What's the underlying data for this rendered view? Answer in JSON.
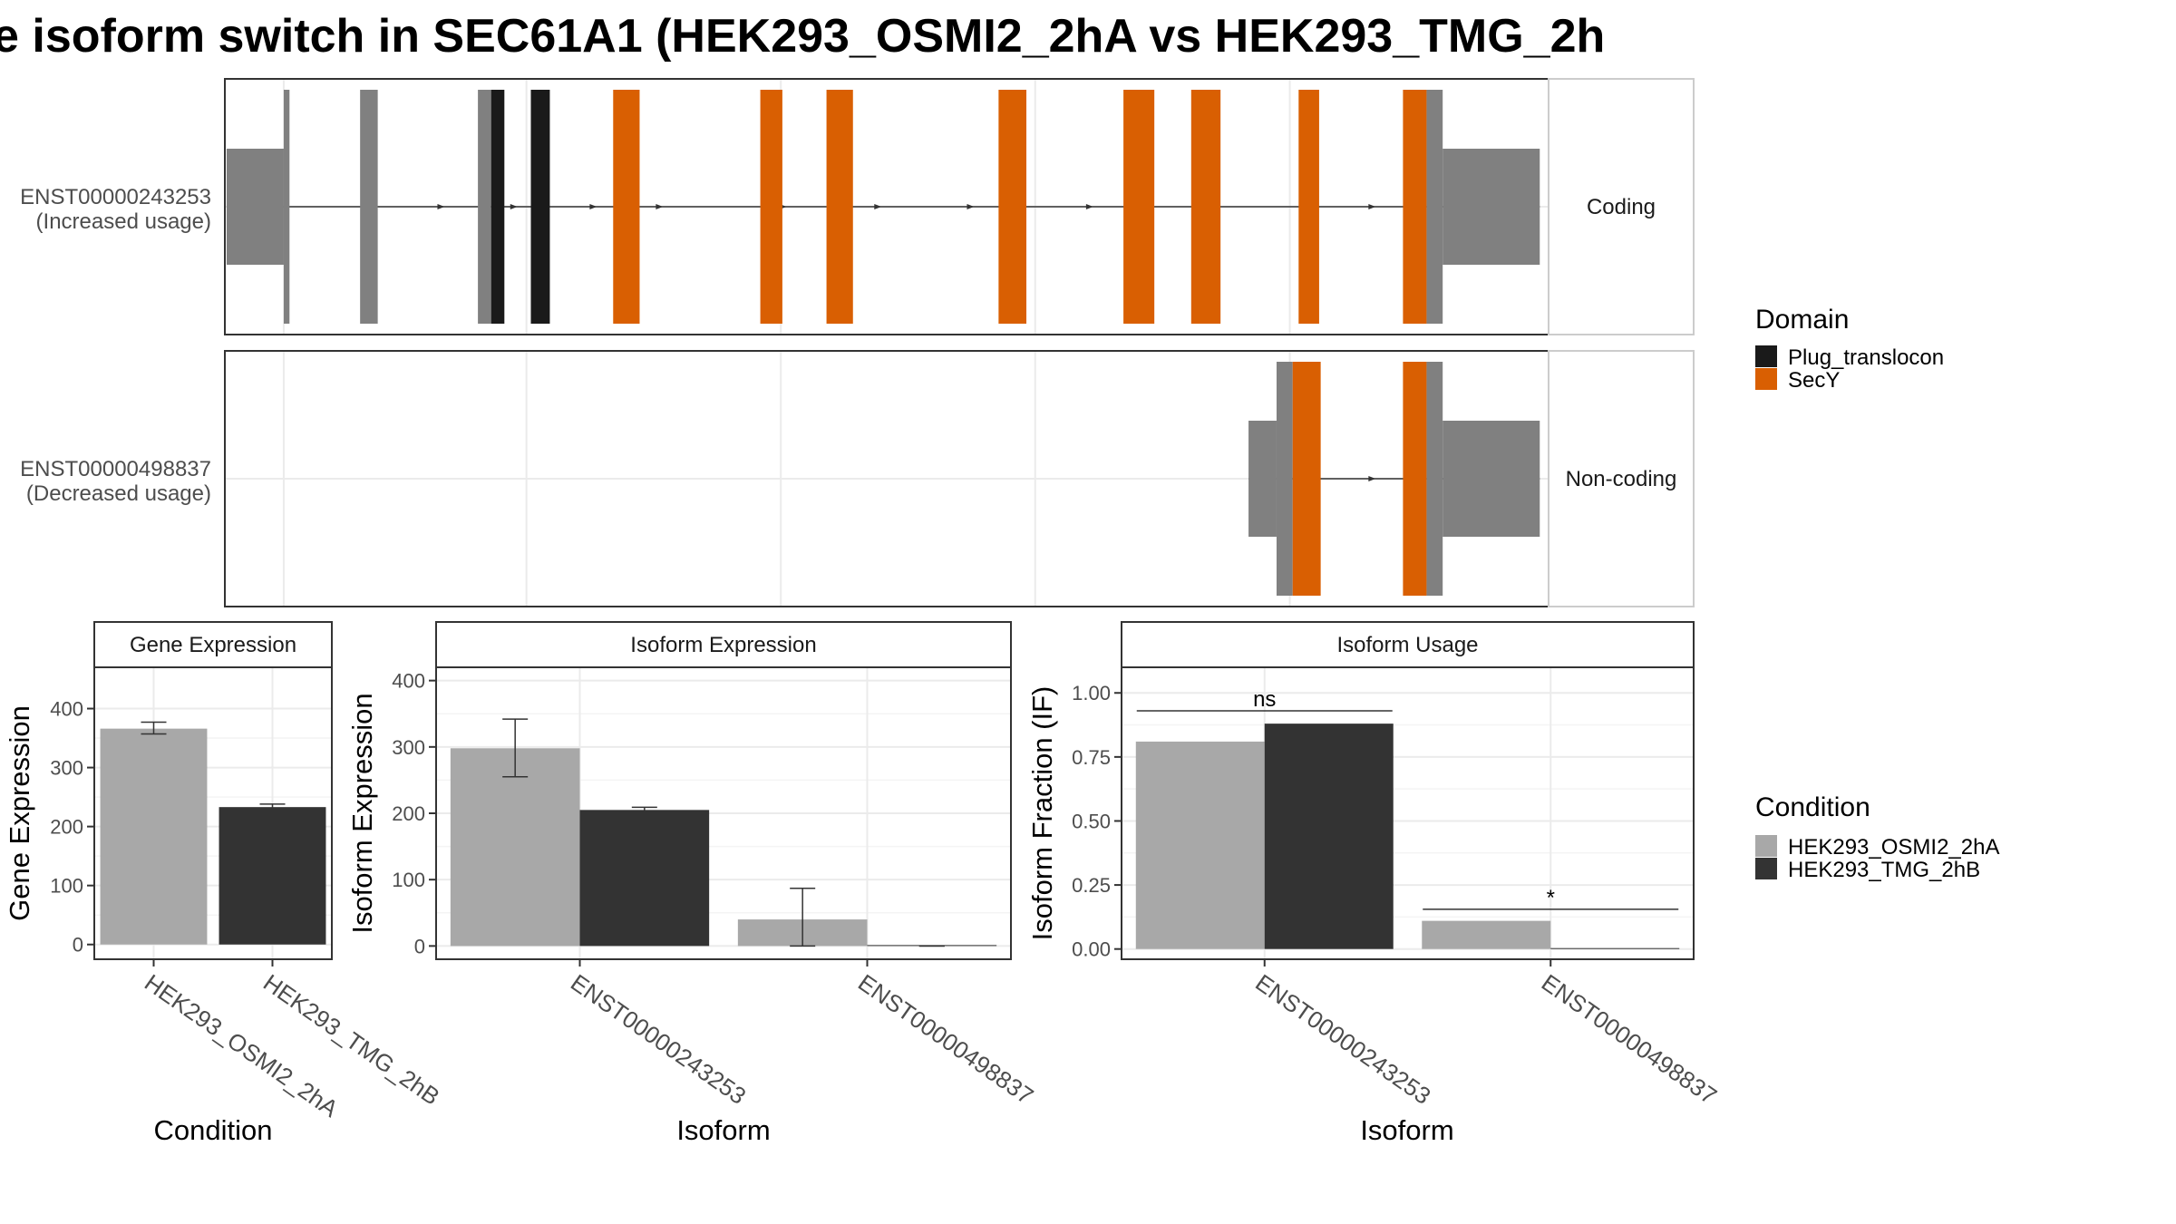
{
  "figure": {
    "title": "e isoform switch in SEC61A1 (HEK293_OSMI2_2hA vs HEK293_TMG_2h"
  },
  "colors": {
    "plug": "#1a1a1a",
    "secy": "#d95f02",
    "exon": "#808080",
    "cond1": "#a8a8a8",
    "cond2": "#333333"
  },
  "chart_data": [
    {
      "type": "gene-structure",
      "tracks": [
        {
          "id": "ENST00000243253",
          "usage": "(Increased usage)",
          "strip": "Coding",
          "exons": [
            {
              "start": 0.08,
              "end": 2.67,
              "kind": "utr"
            },
            {
              "start": 2.67,
              "end": 2.93,
              "kind": "cds"
            },
            {
              "start": 6.13,
              "end": 6.93,
              "kind": "cds"
            },
            {
              "start": 11.47,
              "end": 12.07,
              "kind": "cds"
            },
            {
              "start": 12.07,
              "end": 12.67,
              "kind": "cds",
              "domain": "Plug_translocon"
            },
            {
              "start": 13.87,
              "end": 14.73,
              "kind": "cds",
              "domain": "Plug_translocon"
            },
            {
              "start": 17.6,
              "end": 18.8,
              "kind": "cds",
              "domain": "SecY"
            },
            {
              "start": 24.27,
              "end": 25.27,
              "kind": "cds",
              "domain": "SecY"
            },
            {
              "start": 27.27,
              "end": 28.47,
              "kind": "cds",
              "domain": "SecY"
            },
            {
              "start": 35.07,
              "end": 36.33,
              "kind": "cds",
              "domain": "SecY"
            },
            {
              "start": 40.73,
              "end": 42.13,
              "kind": "cds",
              "domain": "SecY"
            },
            {
              "start": 43.8,
              "end": 45.13,
              "kind": "cds",
              "domain": "SecY"
            },
            {
              "start": 48.67,
              "end": 49.6,
              "kind": "cds",
              "domain": "SecY"
            },
            {
              "start": 53.4,
              "end": 54.47,
              "kind": "cds",
              "domain": "SecY"
            },
            {
              "start": 54.47,
              "end": 55.2,
              "kind": "cds"
            },
            {
              "start": 55.2,
              "end": 59.6,
              "kind": "utr"
            }
          ],
          "arrows": [
            6.4,
            9.8,
            13.1,
            16.7,
            19.7,
            25.3,
            28.3,
            29.6,
            33.8,
            39.2,
            44.2,
            52.0
          ]
        },
        {
          "id": "ENST00000498837",
          "usage": "(Decreased usage)",
          "strip": "Non-coding",
          "exons": [
            {
              "start": 46.4,
              "end": 47.67,
              "kind": "utr"
            },
            {
              "start": 47.67,
              "end": 48.4,
              "kind": "cds"
            },
            {
              "start": 48.4,
              "end": 49.67,
              "kind": "cds",
              "domain": "SecY"
            },
            {
              "start": 53.4,
              "end": 54.47,
              "kind": "cds",
              "domain": "SecY"
            },
            {
              "start": 54.47,
              "end": 55.2,
              "kind": "cds"
            },
            {
              "start": 55.2,
              "end": 59.6,
              "kind": "utr"
            }
          ],
          "arrows": [
            52.0
          ]
        }
      ],
      "legend": {
        "title": "Domain",
        "items": [
          {
            "label": "Plug_translocon",
            "color": "#1a1a1a"
          },
          {
            "label": "SecY",
            "color": "#d95f02"
          }
        ]
      }
    },
    {
      "type": "bar",
      "strip": "Gene Expression",
      "xlabel": "Condition",
      "ylabel": "Gene Expression",
      "categories": [
        "HEK293_OSMI2_2hA",
        "HEK293_TMG_2hB"
      ],
      "values": [
        366,
        233
      ],
      "error_low": [
        357,
        229
      ],
      "error_high": [
        377,
        238
      ],
      "ylim": [
        -25,
        470
      ],
      "yticks": [
        0,
        100,
        200,
        300,
        400
      ]
    },
    {
      "type": "bar",
      "strip": "Isoform Expression",
      "xlabel": "Isoform",
      "ylabel": "Isoform Expression",
      "categories": [
        "ENST00000243253",
        "ENST00000498837"
      ],
      "series": [
        {
          "name": "HEK293_OSMI2_2hA",
          "values": [
            298,
            40
          ],
          "error_low": [
            255,
            0
          ],
          "error_high": [
            342,
            87
          ]
        },
        {
          "name": "HEK293_TMG_2hB",
          "values": [
            205,
            0
          ],
          "error_low": [
            201,
            0
          ],
          "error_high": [
            209,
            0
          ]
        }
      ],
      "ylim": [
        -20,
        420
      ],
      "yticks": [
        0,
        100,
        200,
        300,
        400
      ]
    },
    {
      "type": "bar",
      "strip": "Isoform Usage",
      "xlabel": "Isoform",
      "ylabel": "Isoform Fraction (IF)",
      "categories": [
        "ENST00000243253",
        "ENST00000498837"
      ],
      "series": [
        {
          "name": "HEK293_OSMI2_2hA",
          "values": [
            0.81,
            0.11
          ]
        },
        {
          "name": "HEK293_TMG_2hB",
          "values": [
            0.88,
            0.0
          ]
        }
      ],
      "significance": [
        "ns",
        "*"
      ],
      "significance_y": [
        0.93,
        0.155
      ],
      "ylim": [
        -0.04,
        1.1
      ],
      "yticks": [
        "0.00",
        "0.25",
        "0.50",
        "0.75",
        "1.00"
      ],
      "legend": {
        "title": "Condition",
        "items": [
          {
            "label": "HEK293_OSMI2_2hA",
            "color": "#a8a8a8"
          },
          {
            "label": "HEK293_TMG_2hB",
            "color": "#333333"
          }
        ]
      }
    }
  ]
}
